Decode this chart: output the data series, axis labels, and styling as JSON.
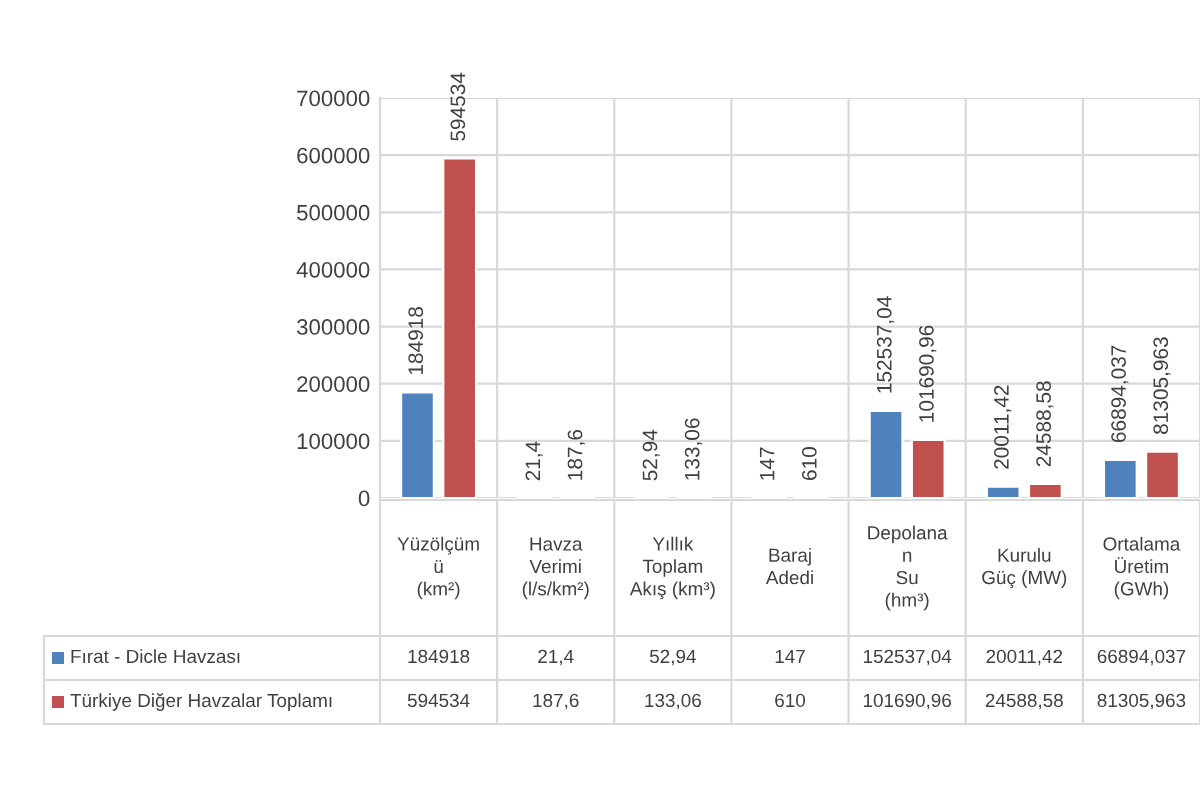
{
  "chart_data": {
    "type": "bar",
    "categories": [
      "Yüzölçüm\nü\n(km²)",
      "Havza\nVerimi\n(l/s/km²)",
      "Yıllık\nToplam\nAkış (km³)",
      "Baraj\nAdedi",
      "Depolana\nn\nSu\n(hm³)",
      "Kurulu\nGüç (MW)",
      "Ortalama\nÜretim\n(GWh)"
    ],
    "series": [
      {
        "name": "Fırat - Dicle Havzası",
        "color": "#4f81bd",
        "values": [
          184918,
          21.4,
          52.94,
          147,
          152537.04,
          20011.42,
          66894.037
        ],
        "value_labels": [
          "184918",
          "21,4",
          "52,94",
          "147",
          "152537,04",
          "20011,42",
          "66894,037"
        ]
      },
      {
        "name": "Türkiye Diğer Havzalar Toplamı",
        "color": "#c0504d",
        "values": [
          594534,
          187.6,
          133.06,
          610,
          101690.96,
          24588.58,
          81305.963
        ],
        "value_labels": [
          "594534",
          "187,6",
          "133,06",
          "610",
          "101690,96",
          "24588,58",
          "81305,963"
        ]
      }
    ],
    "ylim": [
      0,
      700000
    ],
    "yticks": [
      0,
      100000,
      200000,
      300000,
      400000,
      500000,
      600000,
      700000
    ],
    "grid": true,
    "legend": "bottom left"
  }
}
